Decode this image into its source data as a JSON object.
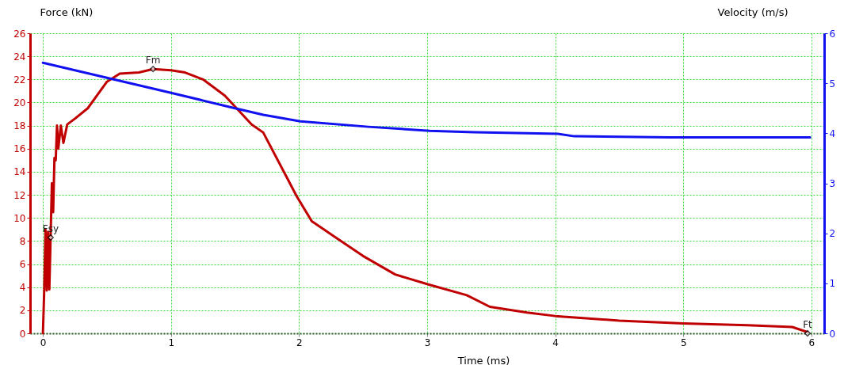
{
  "chart_data": {
    "type": "line",
    "xlabel": "Time (ms)",
    "ylabel": "Force (kN)",
    "y2label": "Velocity (m/s)",
    "xlim": [
      -0.1,
      6.1
    ],
    "xticks": [
      0,
      1,
      2,
      3,
      4,
      5,
      6
    ],
    "ylim": [
      0,
      26
    ],
    "yticks": [
      0,
      2,
      4,
      6,
      8,
      10,
      12,
      14,
      16,
      18,
      20,
      22,
      24,
      26
    ],
    "y2lim": [
      0,
      6
    ],
    "y2ticks": [
      0,
      1,
      2,
      3,
      4,
      5,
      6
    ],
    "grid": true,
    "series": [
      {
        "color": "#c00000",
        "x": [
          0,
          0.01,
          0.02,
          0.03,
          0.04,
          0.05,
          0.06,
          0.07,
          0.08,
          0.09,
          0.1,
          0.11,
          0.12,
          0.14,
          0.16,
          0.19,
          0.25,
          0.35,
          0.5,
          0.6,
          0.75,
          0.86,
          1.0,
          1.11,
          1.25,
          1.42,
          1.63,
          1.72,
          1.9,
          1.98,
          2.1,
          2.3,
          2.5,
          2.75,
          3.02,
          3.31,
          3.49,
          3.78,
          4.0,
          4.5,
          5.0,
          5.5,
          5.85,
          5.97
        ],
        "values": [
          0,
          3.7,
          9.0,
          3.7,
          8.8,
          3.8,
          8.3,
          13.0,
          10.5,
          15.2,
          15.0,
          18.0,
          16.0,
          18.0,
          16.5,
          18.1,
          18.6,
          19.5,
          21.8,
          22.5,
          22.6,
          22.9,
          22.8,
          22.6,
          22.0,
          20.6,
          18.1,
          17.4,
          13.6,
          11.9,
          9.7,
          8.2,
          6.7,
          5.1,
          4.2,
          3.3,
          2.3,
          1.8,
          1.5,
          1.1,
          0.85,
          0.7,
          0.55,
          0.1
        ]
      },
      {
        "color": "#1010f0",
        "axis": "y2",
        "x": [
          0,
          0.5,
          1.0,
          1.5,
          1.72,
          2.01,
          2.54,
          3.02,
          3.37,
          4.02,
          4.15,
          4.89,
          5.99
        ],
        "values": [
          5.41,
          5.11,
          4.81,
          4.5,
          4.37,
          4.24,
          4.13,
          4.05,
          4.02,
          3.99,
          3.94,
          3.92,
          3.92
        ]
      }
    ],
    "annotations": [
      {
        "text": "Fsy",
        "x": 0.06,
        "y": 8.3
      },
      {
        "text": "Fm",
        "x": 0.86,
        "y": 22.9
      },
      {
        "text": "Ft",
        "x": 5.97,
        "y": 0
      }
    ]
  }
}
